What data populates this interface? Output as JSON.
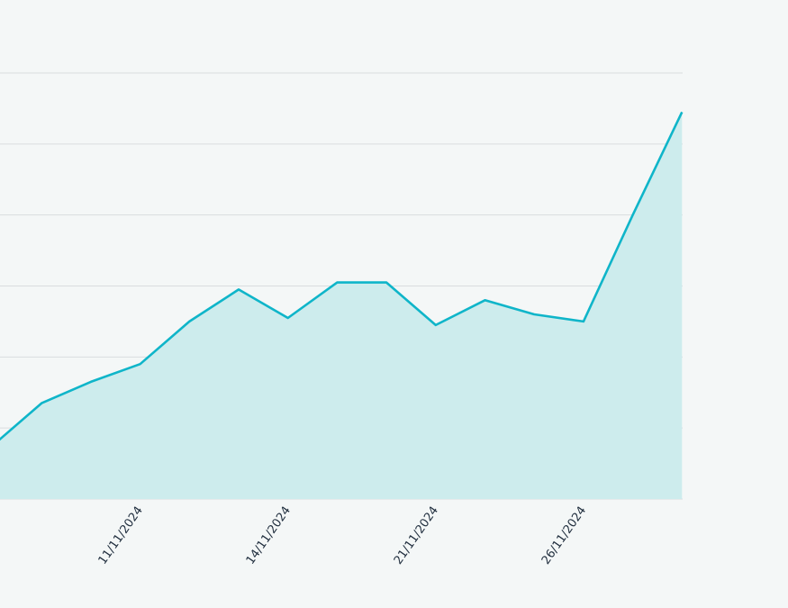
{
  "chart_data": {
    "type": "area",
    "title": "",
    "xlabel": "",
    "ylabel": "",
    "grid": true,
    "legend": "none",
    "ylim": [
      0,
      6
    ],
    "x_tick_labels": [
      "11/11/2024",
      "14/11/2024",
      "21/11/2024",
      "26/11/2024"
    ],
    "x_tick_indices": [
      3,
      6,
      9,
      12
    ],
    "values": [
      0.75,
      1.35,
      1.65,
      1.9,
      2.5,
      2.95,
      2.55,
      3.05,
      3.05,
      2.45,
      2.8,
      2.6,
      2.5,
      4.0,
      5.45
    ],
    "colors": {
      "line": "#0fb5c9",
      "fill": "#cdeced",
      "grid": "#d9dddf",
      "text": "#1f2d3d"
    }
  }
}
